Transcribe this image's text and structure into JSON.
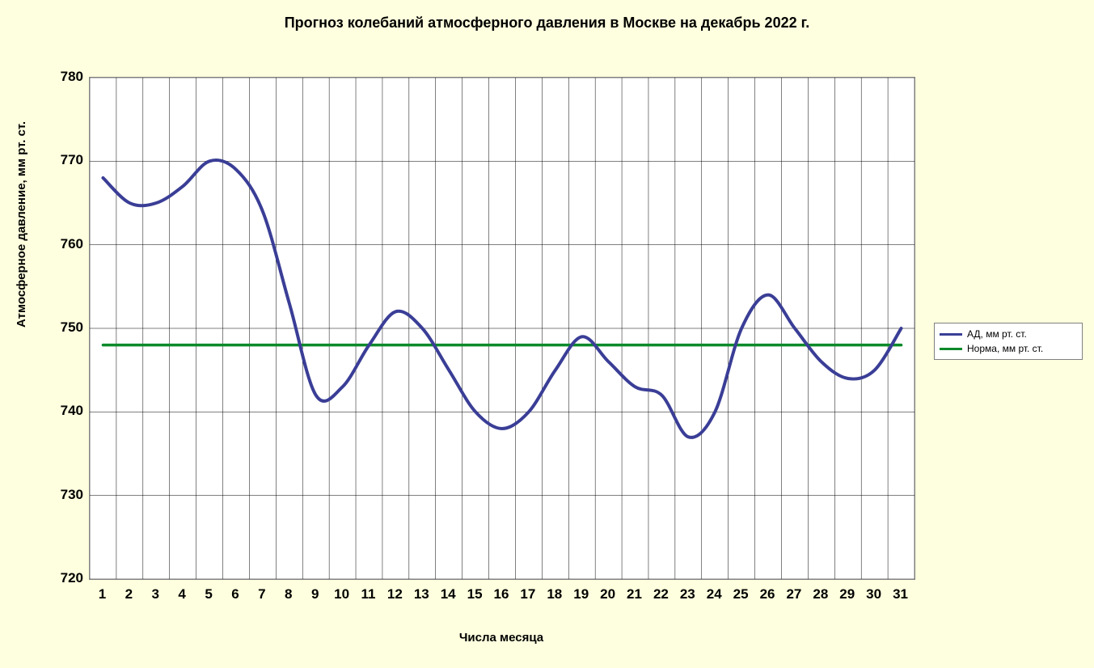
{
  "title": "Прогноз колебаний атмосферного давления в Москве на декабрь 2022 г.",
  "xlabel": "Числа месяца",
  "ylabel": "Атмосферное давление, мм рт. ст.",
  "chart": {
    "type": "line",
    "background_color": "#ffffff",
    "page_background_color": "#feffde",
    "plot_border_color": "#808080",
    "grid_color": "#000000",
    "grid_width": 0.5,
    "ylim": [
      720,
      780
    ],
    "yticks": [
      720,
      730,
      740,
      750,
      760,
      770,
      780
    ],
    "xticks": [
      1,
      2,
      3,
      4,
      5,
      6,
      7,
      8,
      9,
      10,
      11,
      12,
      13,
      14,
      15,
      16,
      17,
      18,
      19,
      20,
      21,
      22,
      23,
      24,
      25,
      26,
      27,
      28,
      29,
      30,
      31
    ],
    "x_count": 31,
    "title_fontsize": 18,
    "axis_label_fontsize": 15,
    "tick_fontsize": 17,
    "series": [
      {
        "name": "АД, мм рт. ст.",
        "color": "#3a3e96",
        "width": 4,
        "smooth": true,
        "values": [
          768,
          765,
          765,
          767,
          770,
          769,
          764,
          753,
          742,
          743,
          748,
          752,
          750,
          745,
          740,
          738,
          740,
          745,
          749,
          746,
          743,
          742,
          737,
          740,
          750,
          754,
          750,
          746,
          744,
          745,
          750
        ]
      },
      {
        "name": "Норма, мм рт. ст.",
        "color": "#0d8a2a",
        "width": 3.5,
        "smooth": false,
        "values": [
          748,
          748,
          748,
          748,
          748,
          748,
          748,
          748,
          748,
          748,
          748,
          748,
          748,
          748,
          748,
          748,
          748,
          748,
          748,
          748,
          748,
          748,
          748,
          748,
          748,
          748,
          748,
          748,
          748,
          748,
          748
        ]
      }
    ]
  },
  "legend": {
    "border_color": "#808080",
    "background_color": "#ffffff",
    "fontsize": 12
  }
}
